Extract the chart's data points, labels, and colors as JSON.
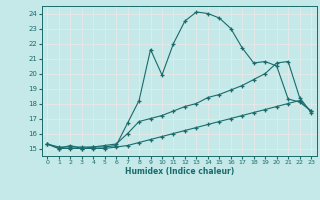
{
  "xlabel": "Humidex (Indice chaleur)",
  "bg_color": "#c5e8e8",
  "grid_color": "#e8e8e8",
  "line_color": "#1a6b6b",
  "xlim": [
    -0.5,
    23.5
  ],
  "ylim": [
    14.5,
    24.5
  ],
  "xticks": [
    0,
    1,
    2,
    3,
    4,
    5,
    6,
    7,
    8,
    9,
    10,
    11,
    12,
    13,
    14,
    15,
    16,
    17,
    18,
    19,
    20,
    21,
    22,
    23
  ],
  "yticks": [
    15,
    16,
    17,
    18,
    19,
    20,
    21,
    22,
    23,
    24
  ],
  "line1_x": [
    0,
    1,
    2,
    3,
    4,
    5,
    6,
    7,
    8,
    9,
    10,
    11,
    12,
    13,
    14,
    15,
    16,
    17,
    18,
    19,
    20,
    21,
    22,
    23
  ],
  "line1_y": [
    15.3,
    15.0,
    15.2,
    15.0,
    15.1,
    15.1,
    15.2,
    16.7,
    18.2,
    21.6,
    19.9,
    22.0,
    23.5,
    24.1,
    24.0,
    23.7,
    23.0,
    21.7,
    20.7,
    20.8,
    20.5,
    18.3,
    18.1,
    17.5
  ],
  "line2_x": [
    0,
    1,
    2,
    3,
    4,
    5,
    6,
    7,
    8,
    9,
    10,
    11,
    12,
    13,
    14,
    15,
    16,
    17,
    18,
    19,
    20,
    21,
    22,
    23
  ],
  "line2_y": [
    15.3,
    15.1,
    15.1,
    15.1,
    15.1,
    15.2,
    15.3,
    16.0,
    16.8,
    17.0,
    17.2,
    17.5,
    17.8,
    18.0,
    18.4,
    18.6,
    18.9,
    19.2,
    19.6,
    20.0,
    20.7,
    20.8,
    18.4,
    17.4
  ],
  "line3_x": [
    0,
    1,
    2,
    3,
    4,
    5,
    6,
    7,
    8,
    9,
    10,
    11,
    12,
    13,
    14,
    15,
    16,
    17,
    18,
    19,
    20,
    21,
    22,
    23
  ],
  "line3_y": [
    15.3,
    15.0,
    15.0,
    15.0,
    15.0,
    15.0,
    15.1,
    15.2,
    15.4,
    15.6,
    15.8,
    16.0,
    16.2,
    16.4,
    16.6,
    16.8,
    17.0,
    17.2,
    17.4,
    17.6,
    17.8,
    18.0,
    18.2,
    17.5
  ]
}
